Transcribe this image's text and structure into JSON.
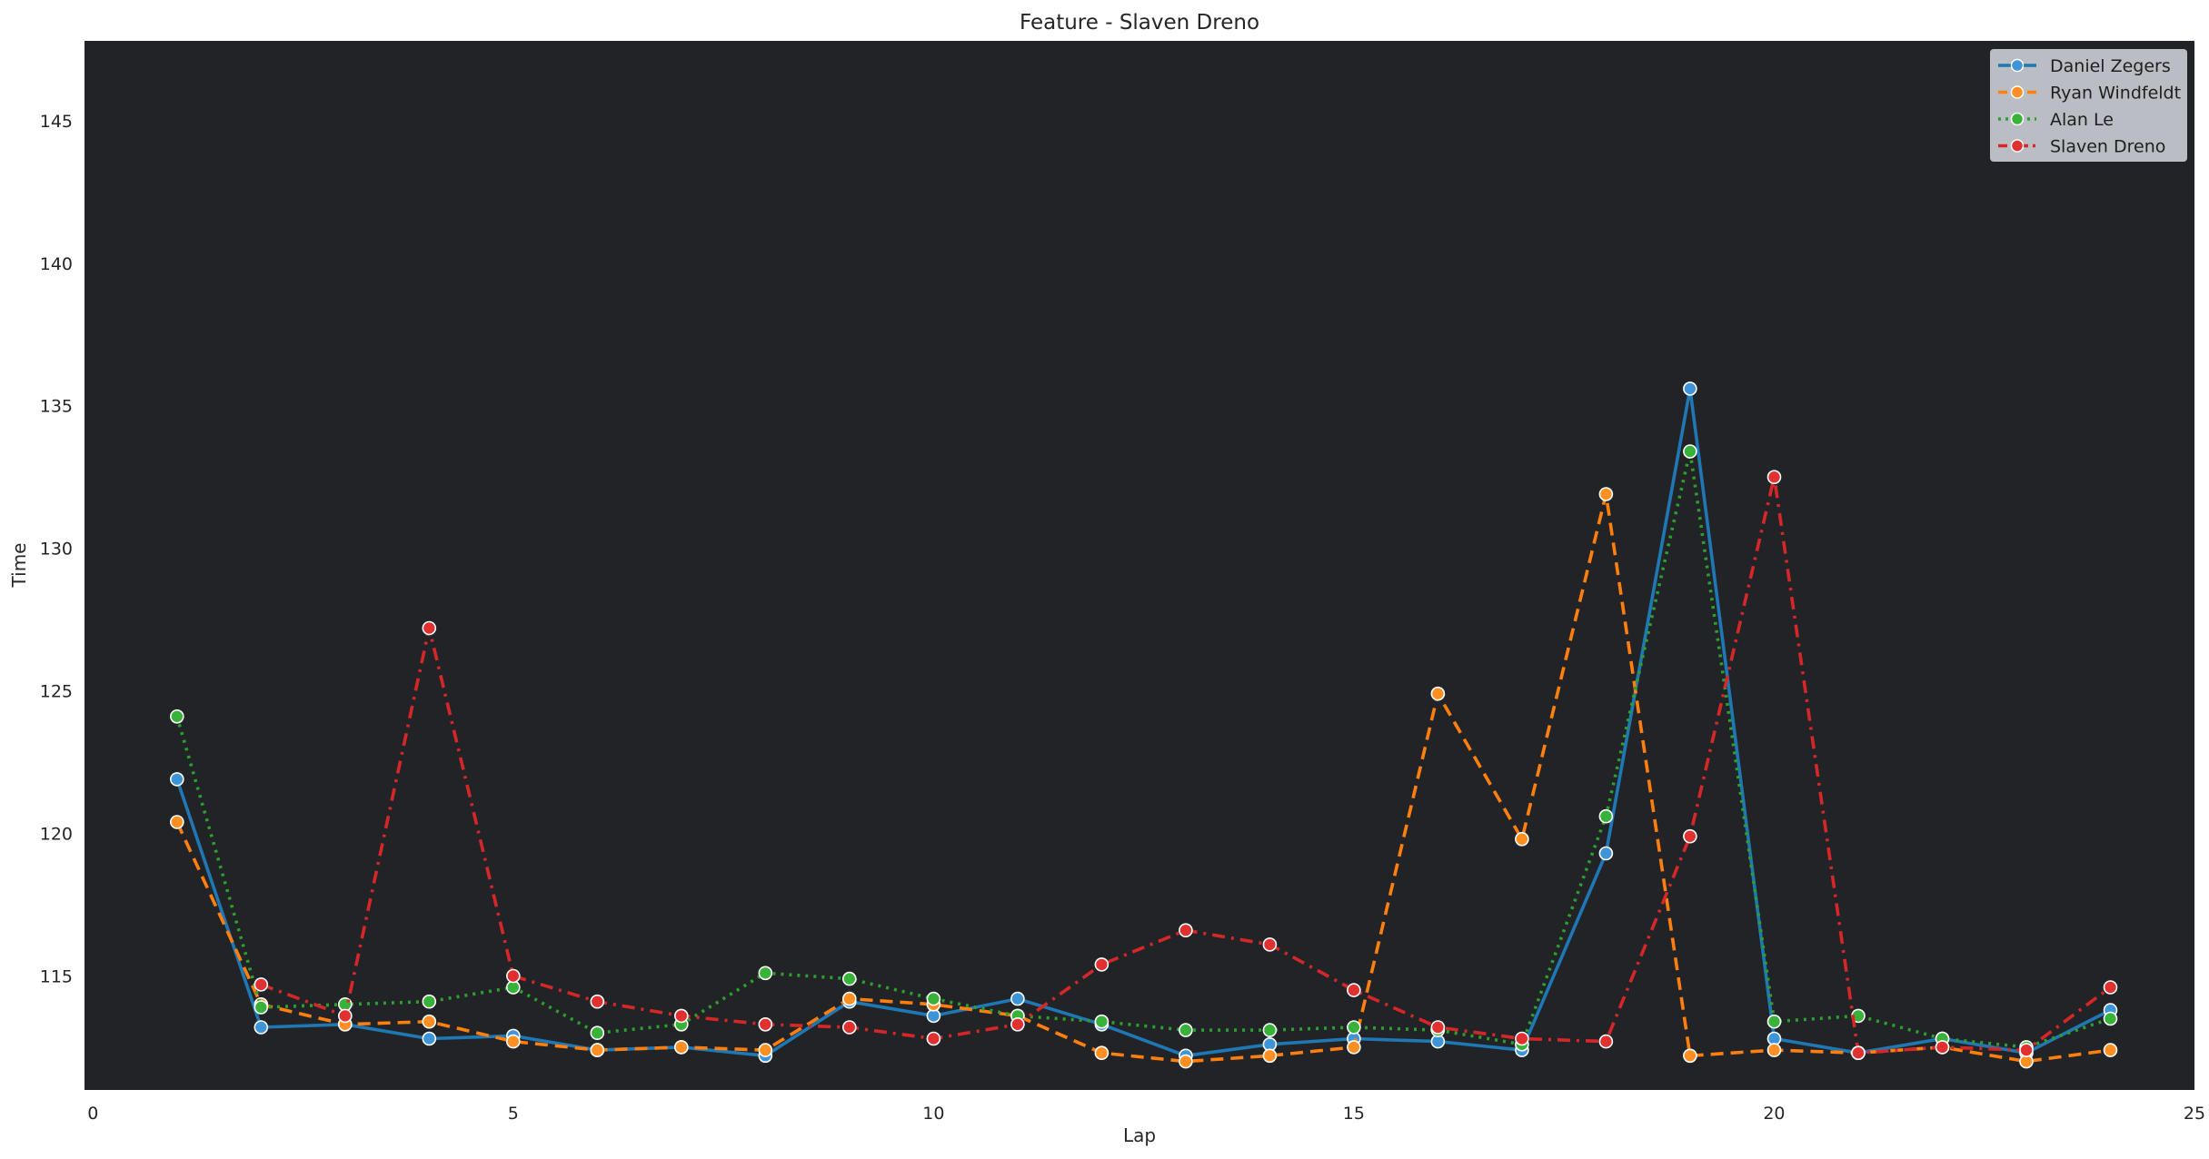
{
  "chart_data": {
    "type": "line",
    "title": "Feature - Slaven Dreno",
    "xlabel": "Lap",
    "ylabel": "Time",
    "xlim": [
      -0.1,
      25
    ],
    "ylim": [
      111,
      147.8
    ],
    "xticks": [
      0,
      5,
      10,
      15,
      20,
      25
    ],
    "yticks": [
      115,
      120,
      125,
      130,
      135,
      140,
      145
    ],
    "grid": false,
    "legend_position": "top-right",
    "plot_background": "#212327",
    "x": [
      1,
      2,
      3,
      4,
      5,
      6,
      7,
      8,
      9,
      10,
      11,
      12,
      13,
      14,
      15,
      16,
      17,
      18,
      19,
      20,
      21,
      22,
      23,
      24
    ],
    "series": [
      {
        "name": "Daniel Zegers",
        "color": "#1f77b4",
        "marker_fill": "#3d94d8",
        "dash": "solid",
        "values": [
          121.9,
          113.2,
          113.3,
          112.8,
          112.9,
          112.4,
          112.5,
          112.2,
          114.1,
          113.6,
          114.2,
          113.3,
          112.2,
          112.6,
          112.8,
          112.7,
          112.4,
          119.3,
          135.6,
          112.8,
          112.3,
          112.8,
          112.3,
          113.8
        ]
      },
      {
        "name": "Ryan Windfeldt",
        "color": "#ff7f0e",
        "marker_fill": "#ff8f22",
        "dash": "dashed",
        "values": [
          120.4,
          114.0,
          113.3,
          113.4,
          112.7,
          112.4,
          112.5,
          112.4,
          114.2,
          114.0,
          113.6,
          112.3,
          112.0,
          112.2,
          112.5,
          124.9,
          119.8,
          131.9,
          112.2,
          112.4,
          112.3,
          112.5,
          112.0,
          112.4
        ]
      },
      {
        "name": "Alan Le",
        "color": "#2ca02c",
        "marker_fill": "#39b239",
        "dash": "dotted",
        "values": [
          124.1,
          113.9,
          114.0,
          114.1,
          114.6,
          113.0,
          113.3,
          115.1,
          114.9,
          114.2,
          113.6,
          113.4,
          113.1,
          113.1,
          113.2,
          113.1,
          112.6,
          120.6,
          133.4,
          113.4,
          113.6,
          112.8,
          112.5,
          113.5
        ]
      },
      {
        "name": "Slaven Dreno",
        "color": "#d62728",
        "marker_fill": "#e03030",
        "dash": "dashdot",
        "values": [
          null,
          114.7,
          113.6,
          127.2,
          115.0,
          114.1,
          113.6,
          113.3,
          113.2,
          112.8,
          113.3,
          115.4,
          116.6,
          116.1,
          114.5,
          113.2,
          112.8,
          112.7,
          119.9,
          132.5,
          112.3,
          112.5,
          112.4,
          114.6
        ]
      }
    ]
  }
}
